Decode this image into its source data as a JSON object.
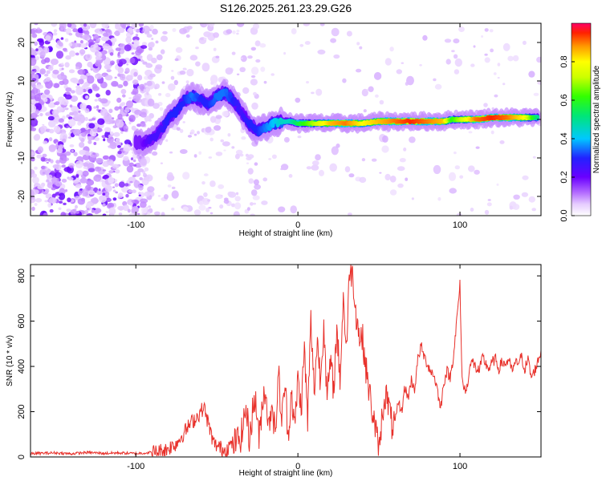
{
  "title": "S126.2025.261.23.29.G26",
  "chart_data": [
    {
      "type": "heatmap",
      "xlabel": "Height of straight line (km)",
      "ylabel": "Frequency (Hz)",
      "xlim": [
        -165,
        150
      ],
      "ylim": [
        -25,
        25
      ],
      "xticks": [
        -100,
        0,
        100
      ],
      "yticks": [
        -20,
        -10,
        0,
        10,
        20
      ],
      "xtick_labels": [
        "-100",
        "0",
        "100"
      ],
      "ytick_labels": [
        "-20",
        "-10",
        "0",
        "10",
        "20"
      ],
      "colorbar": {
        "label": "Normalized spectral amplitude",
        "range": [
          0,
          1
        ],
        "ticks": [
          0.0,
          0.2,
          0.4,
          0.6,
          0.8
        ],
        "tick_labels": [
          "0.0",
          "0.2",
          "0.4",
          "0.6",
          "0.8"
        ]
      },
      "ridge": {
        "x": [
          -100,
          -95,
          -90,
          -85,
          -80,
          -75,
          -70,
          -65,
          -60,
          -55,
          -50,
          -45,
          -40,
          -35,
          -30,
          -25,
          -20,
          -15,
          -10,
          -5,
          0,
          10,
          20,
          30,
          40,
          50,
          60,
          70,
          80,
          90,
          95,
          100,
          110,
          120,
          130,
          140,
          148
        ],
        "y": [
          -6,
          -6,
          -5,
          -3,
          0,
          2,
          5,
          6,
          5,
          4,
          6,
          7,
          5,
          2,
          -1,
          -3,
          -2,
          -1,
          -0.5,
          -0.5,
          -1,
          -1,
          -1,
          -1,
          -1,
          -0.5,
          -0.5,
          -0.5,
          -0.5,
          -0.5,
          0,
          0,
          0,
          0.5,
          0.5,
          0.5,
          0.5
        ],
        "amplitude": [
          0.15,
          0.2,
          0.25,
          0.25,
          0.3,
          0.3,
          0.3,
          0.35,
          0.3,
          0.3,
          0.35,
          0.35,
          0.3,
          0.25,
          0.3,
          0.3,
          0.35,
          0.4,
          0.45,
          0.45,
          0.55,
          0.7,
          0.85,
          0.9,
          0.8,
          0.85,
          0.9,
          0.95,
          0.9,
          0.85,
          0.6,
          0.7,
          0.9,
          0.95,
          0.9,
          0.8,
          0.5
        ]
      }
    },
    {
      "type": "line",
      "xlabel": "Height of straight line (km)",
      "ylabel": "SNR (10 * v/v)",
      "xlim": [
        -165,
        150
      ],
      "ylim": [
        0,
        850
      ],
      "xticks": [
        -100,
        0,
        100
      ],
      "yticks": [
        0,
        200,
        400,
        600,
        800
      ],
      "xtick_labels": [
        "-100",
        "0",
        "100"
      ],
      "ytick_labels": [
        "0",
        "200",
        "400",
        "600",
        "800"
      ],
      "color": "#e8302a",
      "series": [
        {
          "name": "SNR",
          "x": [
            -165,
            -150,
            -140,
            -130,
            -120,
            -110,
            -100,
            -90,
            -82,
            -75,
            -70,
            -66,
            -62,
            -58,
            -55,
            -52,
            -48,
            -45,
            -42,
            -38,
            -35,
            -32,
            -30,
            -28,
            -26,
            -24,
            -22,
            -20,
            -18,
            -16,
            -14,
            -12,
            -10,
            -8,
            -6,
            -4,
            -2,
            0,
            2,
            4,
            6,
            8,
            10,
            12,
            14,
            16,
            18,
            20,
            22,
            24,
            26,
            28,
            30,
            32,
            34,
            36,
            38,
            40,
            42,
            44,
            46,
            48,
            50,
            52,
            54,
            56,
            58,
            60,
            62,
            64,
            66,
            68,
            70,
            72,
            74,
            76,
            78,
            80,
            82,
            84,
            86,
            88,
            90,
            92,
            94,
            96,
            98,
            100,
            101,
            102,
            104,
            106,
            108,
            110,
            112,
            114,
            116,
            118,
            120,
            122,
            124,
            126,
            128,
            130,
            132,
            134,
            136,
            138,
            140,
            142,
            144,
            146,
            148,
            150
          ],
          "y": [
            15,
            18,
            14,
            20,
            16,
            18,
            15,
            20,
            30,
            60,
            110,
            150,
            180,
            220,
            140,
            60,
            40,
            30,
            50,
            70,
            90,
            220,
            80,
            200,
            260,
            70,
            240,
            310,
            120,
            260,
            80,
            380,
            150,
            330,
            90,
            300,
            120,
            350,
            210,
            480,
            160,
            600,
            290,
            520,
            330,
            610,
            250,
            420,
            300,
            560,
            350,
            700,
            480,
            840,
            790,
            630,
            530,
            520,
            390,
            290,
            200,
            120,
            20,
            190,
            280,
            230,
            140,
            150,
            240,
            200,
            310,
            260,
            340,
            300,
            430,
            490,
            440,
            410,
            380,
            360,
            300,
            210,
            330,
            380,
            350,
            450,
            600,
            760,
            410,
            310,
            290,
            400,
            420,
            390,
            380,
            440,
            410,
            390,
            420,
            430,
            390,
            420,
            410,
            430,
            380,
            410,
            420,
            440,
            390,
            430,
            350,
            380,
            420,
            470
          ]
        }
      ]
    }
  ]
}
